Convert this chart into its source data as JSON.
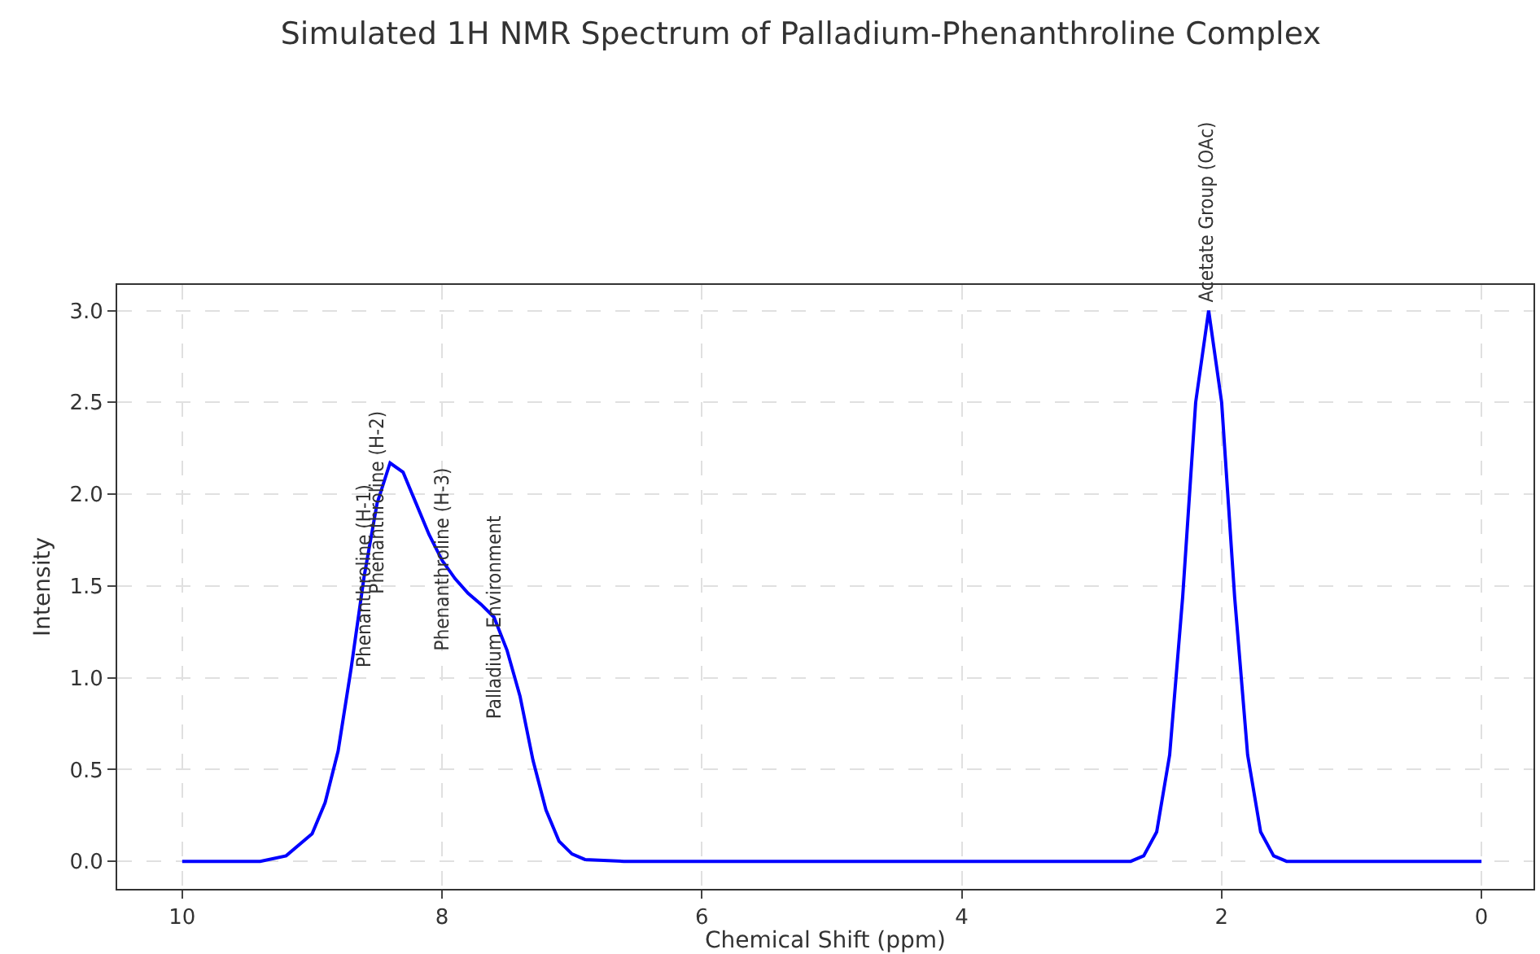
{
  "chart_data": {
    "type": "line",
    "title": "Simulated 1H NMR Spectrum of Palladium-Phenanthroline Complex",
    "xlabel": "Chemical Shift (ppm)",
    "ylabel": "Intensity",
    "series": [
      {
        "color": "#0000ff",
        "x": [
          10,
          9.6,
          9.4,
          9.2,
          9.0,
          8.9,
          8.8,
          8.7,
          8.6,
          8.5,
          8.4,
          8.3,
          8.2,
          8.1,
          8.0,
          7.9,
          7.8,
          7.7,
          7.6,
          7.5,
          7.4,
          7.3,
          7.2,
          7.1,
          7.0,
          6.9,
          6.6,
          6,
          5,
          4,
          3,
          2.9,
          2.7,
          2.6,
          2.5,
          2.4,
          2.3,
          2.2,
          2.1,
          2.0,
          1.9,
          1.8,
          1.7,
          1.6,
          1.5,
          1.3,
          1,
          0.5,
          0
        ],
        "values": [
          0,
          0,
          0,
          0.03,
          0.15,
          0.32,
          0.6,
          1.05,
          1.55,
          1.95,
          2.17,
          2.12,
          1.95,
          1.78,
          1.64,
          1.54,
          1.46,
          1.4,
          1.33,
          1.15,
          0.9,
          0.55,
          0.28,
          0.11,
          0.04,
          0.01,
          0,
          0,
          0,
          0,
          0,
          0,
          0,
          0.03,
          0.16,
          0.58,
          1.44,
          2.5,
          3.0,
          2.5,
          1.44,
          0.58,
          0.16,
          0.03,
          0,
          0,
          0,
          0,
          0
        ]
      }
    ],
    "xlim": [
      10.5,
      -0.4
    ],
    "xticks": [
      10,
      8,
      6,
      4,
      2,
      0
    ],
    "ylim": [
      -0.15,
      3.14
    ],
    "yticks": [
      {
        "value": 0,
        "label": "0.0"
      },
      {
        "value": 0.5,
        "label": "0.5"
      },
      {
        "value": 1,
        "label": "1.0"
      },
      {
        "value": 1.5,
        "label": "1.5"
      },
      {
        "value": 2,
        "label": "2.0"
      },
      {
        "value": 2.5,
        "label": "2.5"
      },
      {
        "value": 3,
        "label": "3.0"
      }
    ],
    "grid": true,
    "marker": "none",
    "line_style": "solid",
    "annotations": [
      {
        "text": "Phenanthroline (H-1)",
        "x": 8.6,
        "y": 1.55
      },
      {
        "text": "Phenanthroline (H-2)",
        "x": 8.5,
        "y": 1.95
      },
      {
        "text": "Phenanthroline (H-3)",
        "x": 8.0,
        "y": 1.64
      },
      {
        "text": "Palladium Environment",
        "x": 7.6,
        "y": 1.33
      },
      {
        "text": "Acetate Group (OAc)",
        "x": 2.12,
        "y": 3.03
      }
    ]
  }
}
